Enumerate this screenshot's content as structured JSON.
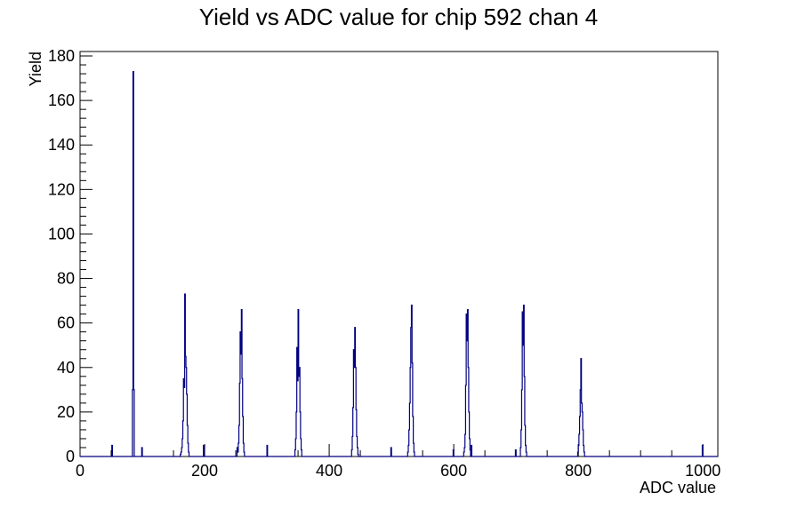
{
  "chart_data": {
    "type": "histogram",
    "title": "Yield vs ADC value for chip 592 chan 4",
    "xlabel": "ADC value",
    "ylabel": "Yield",
    "xlim": [
      0,
      1024
    ],
    "ylim": [
      0,
      182
    ],
    "bin_width": 1,
    "grid": false,
    "legend": "none",
    "line_color": "#000080",
    "x_ticks": [
      0,
      200,
      400,
      600,
      800,
      1000
    ],
    "y_ticks": [
      0,
      20,
      40,
      60,
      80,
      100,
      120,
      140,
      160,
      180
    ],
    "bins": [
      {
        "x": 51,
        "y": 5
      },
      {
        "x": 84,
        "y": 30
      },
      {
        "x": 85,
        "y": 173
      },
      {
        "x": 86,
        "y": 30
      },
      {
        "x": 99,
        "y": 4
      },
      {
        "x": 161,
        "y": 1
      },
      {
        "x": 162,
        "y": 2
      },
      {
        "x": 163,
        "y": 4
      },
      {
        "x": 164,
        "y": 8
      },
      {
        "x": 165,
        "y": 16
      },
      {
        "x": 166,
        "y": 35
      },
      {
        "x": 167,
        "y": 31
      },
      {
        "x": 168,
        "y": 73
      },
      {
        "x": 169,
        "y": 45
      },
      {
        "x": 170,
        "y": 40
      },
      {
        "x": 171,
        "y": 28
      },
      {
        "x": 172,
        "y": 14
      },
      {
        "x": 173,
        "y": 6
      },
      {
        "x": 174,
        "y": 2
      },
      {
        "x": 198,
        "y": 5
      },
      {
        "x": 252,
        "y": 4
      },
      {
        "x": 253,
        "y": 2
      },
      {
        "x": 254,
        "y": 6
      },
      {
        "x": 255,
        "y": 14
      },
      {
        "x": 256,
        "y": 33
      },
      {
        "x": 257,
        "y": 56
      },
      {
        "x": 258,
        "y": 46
      },
      {
        "x": 259,
        "y": 66
      },
      {
        "x": 260,
        "y": 35
      },
      {
        "x": 261,
        "y": 18
      },
      {
        "x": 262,
        "y": 6
      },
      {
        "x": 263,
        "y": 2
      },
      {
        "x": 300,
        "y": 5
      },
      {
        "x": 345,
        "y": 3
      },
      {
        "x": 346,
        "y": 8
      },
      {
        "x": 347,
        "y": 20
      },
      {
        "x": 348,
        "y": 49
      },
      {
        "x": 349,
        "y": 34
      },
      {
        "x": 350,
        "y": 66
      },
      {
        "x": 351,
        "y": 36
      },
      {
        "x": 352,
        "y": 40
      },
      {
        "x": 353,
        "y": 20
      },
      {
        "x": 354,
        "y": 8
      },
      {
        "x": 355,
        "y": 3
      },
      {
        "x": 436,
        "y": 3
      },
      {
        "x": 437,
        "y": 9
      },
      {
        "x": 438,
        "y": 22
      },
      {
        "x": 439,
        "y": 48
      },
      {
        "x": 440,
        "y": 40
      },
      {
        "x": 441,
        "y": 58
      },
      {
        "x": 442,
        "y": 40
      },
      {
        "x": 443,
        "y": 21
      },
      {
        "x": 444,
        "y": 9
      },
      {
        "x": 445,
        "y": 4
      },
      {
        "x": 446,
        "y": 1
      },
      {
        "x": 499,
        "y": 4
      },
      {
        "x": 526,
        "y": 2
      },
      {
        "x": 527,
        "y": 5
      },
      {
        "x": 528,
        "y": 12
      },
      {
        "x": 529,
        "y": 24
      },
      {
        "x": 530,
        "y": 40
      },
      {
        "x": 531,
        "y": 58
      },
      {
        "x": 532,
        "y": 68
      },
      {
        "x": 533,
        "y": 42
      },
      {
        "x": 534,
        "y": 18
      },
      {
        "x": 535,
        "y": 6
      },
      {
        "x": 536,
        "y": 2
      },
      {
        "x": 599,
        "y": 3
      },
      {
        "x": 616,
        "y": 2
      },
      {
        "x": 617,
        "y": 4
      },
      {
        "x": 618,
        "y": 10
      },
      {
        "x": 619,
        "y": 32
      },
      {
        "x": 620,
        "y": 64
      },
      {
        "x": 621,
        "y": 52
      },
      {
        "x": 622,
        "y": 66
      },
      {
        "x": 623,
        "y": 40
      },
      {
        "x": 624,
        "y": 20
      },
      {
        "x": 625,
        "y": 8
      },
      {
        "x": 626,
        "y": 3
      },
      {
        "x": 628,
        "y": 5
      },
      {
        "x": 699,
        "y": 3
      },
      {
        "x": 707,
        "y": 4
      },
      {
        "x": 708,
        "y": 12
      },
      {
        "x": 709,
        "y": 30
      },
      {
        "x": 710,
        "y": 65
      },
      {
        "x": 711,
        "y": 50
      },
      {
        "x": 712,
        "y": 68
      },
      {
        "x": 713,
        "y": 36
      },
      {
        "x": 714,
        "y": 14
      },
      {
        "x": 715,
        "y": 5
      },
      {
        "x": 716,
        "y": 2
      },
      {
        "x": 799,
        "y": 2
      },
      {
        "x": 800,
        "y": 5
      },
      {
        "x": 801,
        "y": 10
      },
      {
        "x": 802,
        "y": 18
      },
      {
        "x": 803,
        "y": 30
      },
      {
        "x": 804,
        "y": 44
      },
      {
        "x": 805,
        "y": 24
      },
      {
        "x": 806,
        "y": 20
      },
      {
        "x": 807,
        "y": 12
      },
      {
        "x": 808,
        "y": 5
      },
      {
        "x": 809,
        "y": 2
      },
      {
        "x": 999,
        "y": 5
      }
    ]
  }
}
